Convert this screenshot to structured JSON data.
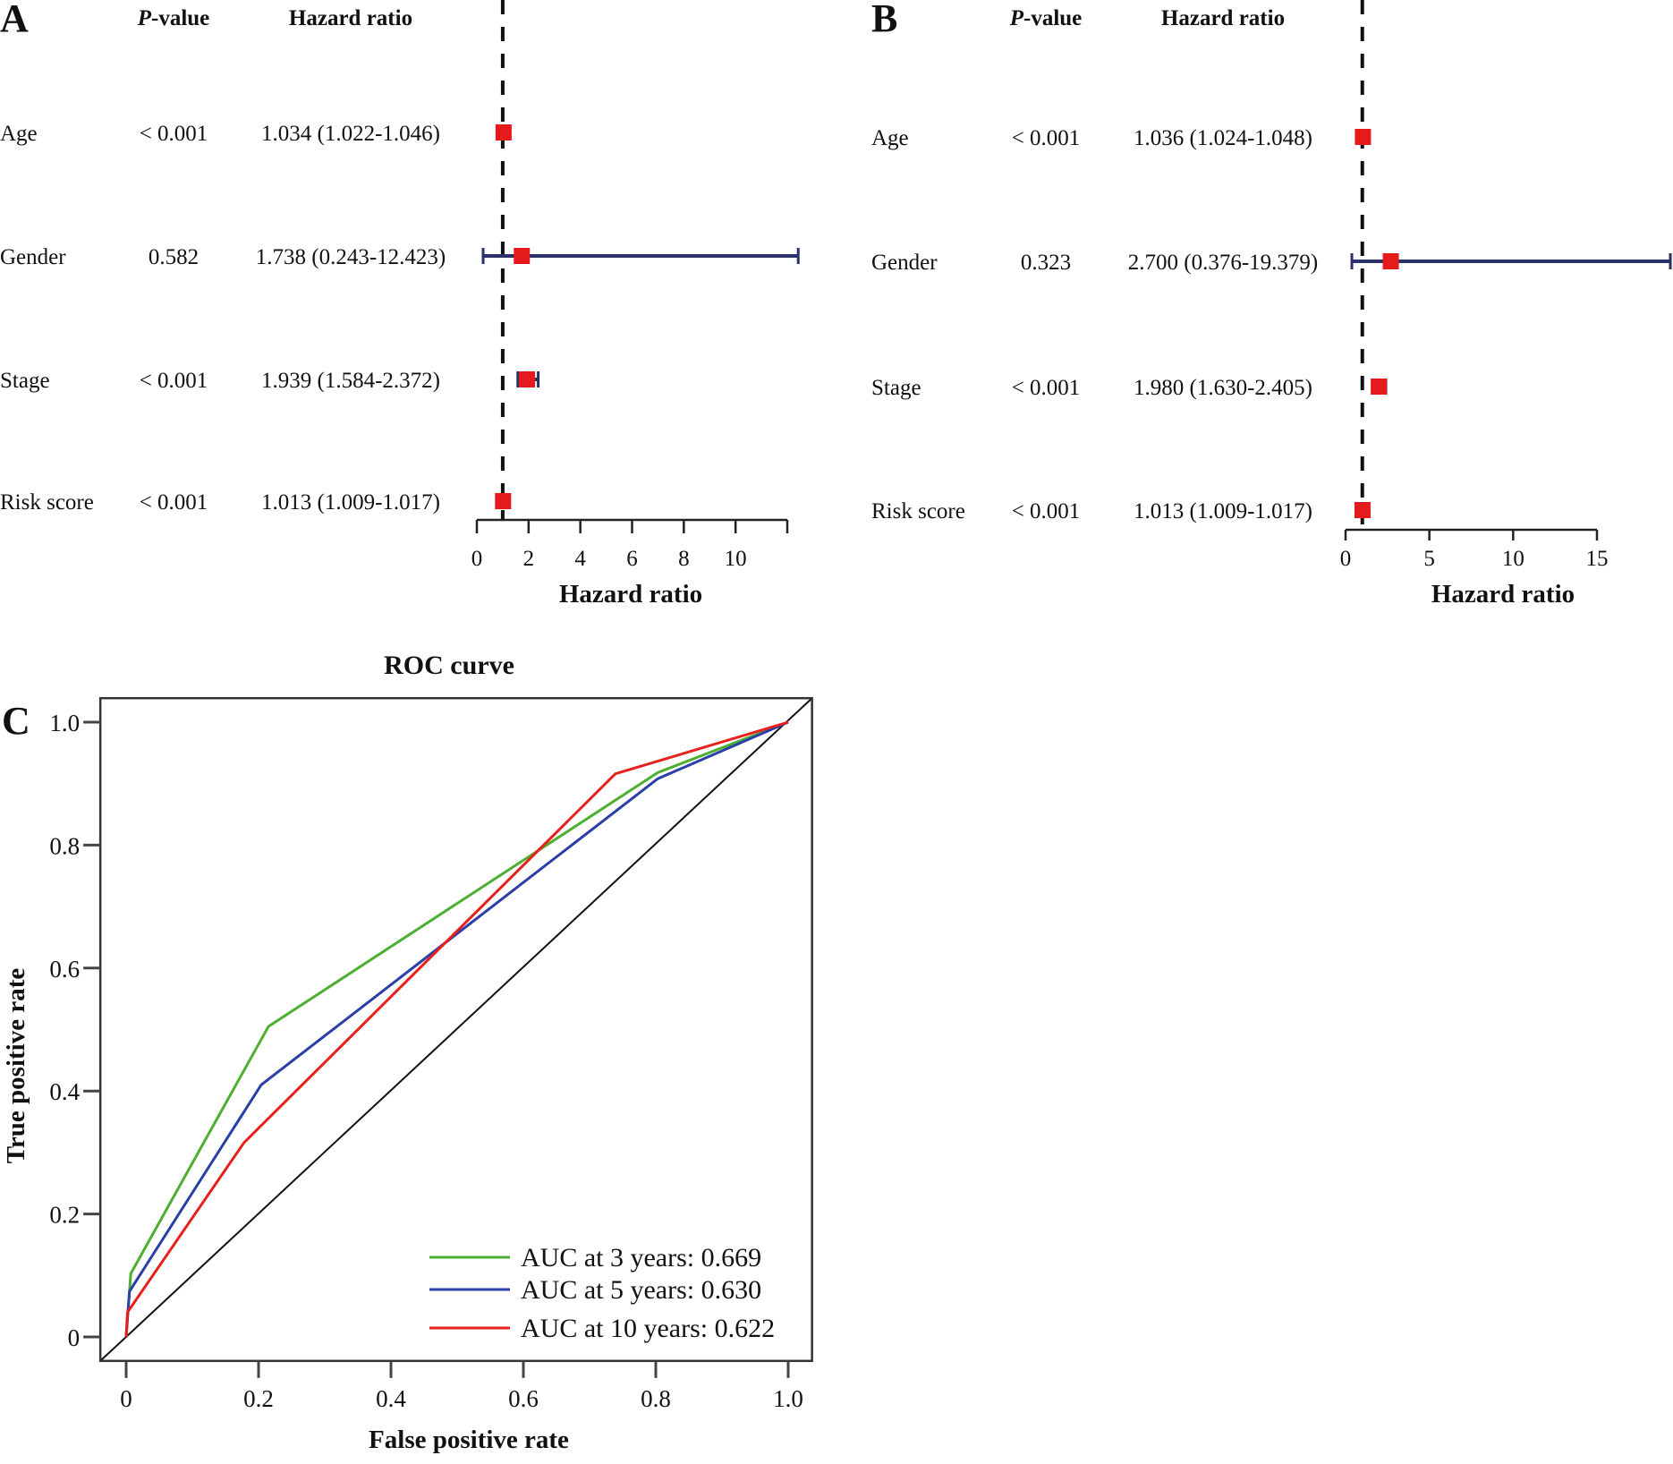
{
  "chart_data": [
    {
      "panel": "A",
      "type": "forest",
      "columns": {
        "pvalue": "P-value",
        "pvalue_italic_prefix": "P",
        "pvalue_suffix": "-value",
        "hazard": "Hazard ratio"
      },
      "rows": [
        {
          "label": "Age",
          "pvalue": "< 0.001",
          "hr_text": "1.034 (1.022-1.046)",
          "hr": 1.034,
          "lo": 1.022,
          "hi": 1.046
        },
        {
          "label": "Gender",
          "pvalue": "0.582",
          "hr_text": "1.738 (0.243-12.423)",
          "hr": 1.738,
          "lo": 0.243,
          "hi": 12.423
        },
        {
          "label": "Stage",
          "pvalue": "< 0.001",
          "hr_text": "1.939 (1.584-2.372)",
          "hr": 1.939,
          "lo": 1.584,
          "hi": 2.372
        },
        {
          "label": "Risk score",
          "pvalue": "< 0.001",
          "hr_text": "1.013 (1.009-1.017)",
          "hr": 1.013,
          "lo": 1.009,
          "hi": 1.017
        }
      ],
      "xlabel": "Hazard ratio",
      "xticks": [
        0,
        2,
        4,
        6,
        8,
        10
      ],
      "xlim": [
        0,
        12
      ],
      "reference_line": 1
    },
    {
      "panel": "B",
      "type": "forest",
      "columns": {
        "pvalue": "P-value",
        "pvalue_italic_prefix": "P",
        "pvalue_suffix": "-value",
        "hazard": "Hazard ratio"
      },
      "rows": [
        {
          "label": "Age",
          "pvalue": "< 0.001",
          "hr_text": "1.036 (1.024-1.048)",
          "hr": 1.036,
          "lo": 1.024,
          "hi": 1.048
        },
        {
          "label": "Gender",
          "pvalue": "0.323",
          "hr_text": "2.700 (0.376-19.379)",
          "hr": 2.7,
          "lo": 0.376,
          "hi": 19.379
        },
        {
          "label": "Stage",
          "pvalue": "< 0.001",
          "hr_text": "1.980 (1.630-2.405)",
          "hr": 1.98,
          "lo": 1.63,
          "hi": 2.405
        },
        {
          "label": "Risk score",
          "pvalue": "< 0.001",
          "hr_text": "1.013 (1.009-1.017)",
          "hr": 1.013,
          "lo": 1.009,
          "hi": 1.017
        }
      ],
      "xlabel": "Hazard ratio",
      "xticks": [
        0,
        5,
        10,
        15
      ],
      "xlim": [
        0,
        15
      ],
      "reference_line": 1
    },
    {
      "panel": "C",
      "type": "line",
      "title": "ROC curve",
      "xlabel": "False positive rate",
      "ylabel": "True positive rate",
      "xticks": [
        0,
        0.2,
        0.4,
        0.6,
        0.8,
        1.0
      ],
      "xtick_labels": [
        "0",
        "0.2",
        "0.4",
        "0.6",
        "0.8",
        "1.0"
      ],
      "yticks": [
        0,
        0.2,
        0.4,
        0.6,
        0.8,
        1.0
      ],
      "ytick_labels": [
        "0",
        "0.2",
        "0.4",
        "0.6",
        "0.8",
        "1.0"
      ],
      "xlim": [
        -0.039,
        1.036
      ],
      "ylim": [
        -0.039,
        1.039
      ],
      "legend_position": "bottom-right",
      "series": [
        {
          "name": "AUC at 3 years: 0.669",
          "auc": 0.669,
          "color": "#4caf32",
          "x": [
            0,
            0.007,
            0.215,
            0.803,
            1.0
          ],
          "y": [
            0,
            0.103,
            0.505,
            0.918,
            1.0
          ]
        },
        {
          "name": "AUC at 5 years: 0.630",
          "auc": 0.63,
          "color": "#2b3fa8",
          "x": [
            0,
            0.005,
            0.204,
            0.803,
            1.0
          ],
          "y": [
            0,
            0.074,
            0.41,
            0.908,
            1.0
          ]
        },
        {
          "name": "AUC at 10 years: 0.622",
          "auc": 0.622,
          "color": "#e8201c",
          "x": [
            0,
            0.002,
            0.178,
            0.739,
            1.0
          ],
          "y": [
            0,
            0.04,
            0.316,
            0.916,
            1.0
          ]
        }
      ],
      "diagonal": {
        "name": "reference",
        "color": "#111111"
      }
    }
  ],
  "colors": {
    "marker": "#e41a1c",
    "ci_line": "#2a3068",
    "axis": "#222222"
  }
}
